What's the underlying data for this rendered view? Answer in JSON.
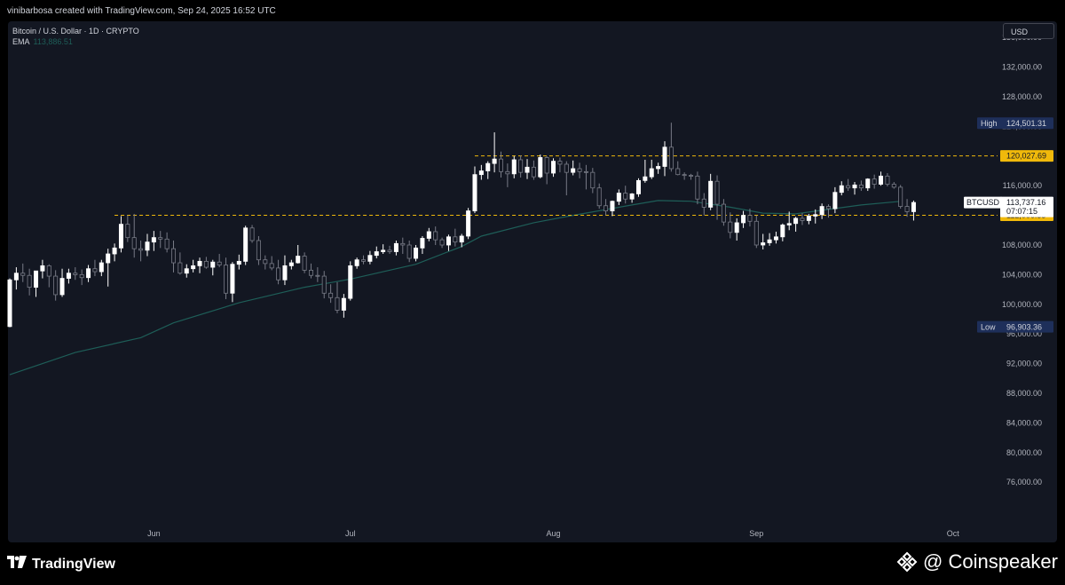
{
  "header": {
    "attribution": "vinibarbosa created with TradingView.com, Sep 24, 2025 16:52 UTC"
  },
  "legend": {
    "symbol_line": "Bitcoin / U.S. Dollar · 1D · CRYPTO",
    "ema_label": "EMA",
    "ema_value": "113,886.51"
  },
  "toolbar": {
    "currency": "USD"
  },
  "footer": {
    "brand": "TradingView",
    "watermark": "@ Coinspeaker"
  },
  "colors": {
    "background": "#131722",
    "up": "#ffffff",
    "down": "#787b86",
    "ema": "#1e5e58",
    "level": "#f0b90b",
    "axis_text": "#b2b5be"
  },
  "chart_data": {
    "type": "candlestick",
    "symbol": "BTCUSD",
    "ylim": [
      72000,
      140000
    ],
    "y_ticks": [
      "76,000.00",
      "80,000.00",
      "84,000.00",
      "88,000.00",
      "92,000.00",
      "96,000.00",
      "100,000.00",
      "104,000.00",
      "108,000.00",
      "112,000.00",
      "116,000.00",
      "120,000.00",
      "124,000.00",
      "128,000.00",
      "132,000.00",
      "136,000.00"
    ],
    "x_ticks": [
      "Jun",
      "Jul",
      "Aug",
      "Sep",
      "Oct"
    ],
    "x_tick_days": [
      22,
      52,
      83,
      114,
      144
    ],
    "last_day_index": 136,
    "high": {
      "label": "High",
      "value": 124501.31,
      "text": "124,501.31"
    },
    "low": {
      "label": "Low",
      "value": 96903.36,
      "text": "96,903.36"
    },
    "price": {
      "label": "BTCUSD",
      "value": 113737.16,
      "text": "113,737.16",
      "countdown": "07:07:15"
    },
    "levels": [
      {
        "value": 120027.69,
        "text": "120,027.69"
      },
      {
        "value": 112006.33,
        "text": "112,006.33"
      }
    ],
    "candles": [
      [
        97000,
        103500,
        96903.36,
        103300
      ],
      [
        103300,
        105000,
        102000,
        104200
      ],
      [
        104200,
        105500,
        103000,
        103900
      ],
      [
        103900,
        104800,
        101200,
        102300
      ],
      [
        102300,
        104200,
        101000,
        104500
      ],
      [
        104500,
        106000,
        103500,
        105200
      ],
      [
        105200,
        105400,
        102300,
        103800
      ],
      [
        103800,
        104600,
        100500,
        101300
      ],
      [
        101300,
        104800,
        101000,
        103500
      ],
      [
        103500,
        104800,
        102800,
        104200
      ],
      [
        104200,
        105000,
        103300,
        104000
      ],
      [
        104000,
        104700,
        102600,
        103600
      ],
      [
        103600,
        105300,
        103000,
        104800
      ],
      [
        104800,
        106000,
        103800,
        104400
      ],
      [
        104400,
        106000,
        103800,
        105600
      ],
      [
        105600,
        107500,
        102400,
        106800
      ],
      [
        106800,
        108200,
        105800,
        107600
      ],
      [
        107600,
        111900,
        107000,
        110800
      ],
      [
        110800,
        112000,
        108400,
        109000
      ],
      [
        109000,
        112200,
        106300,
        107500
      ],
      [
        107500,
        108600,
        105800,
        107300
      ],
      [
        107300,
        109500,
        106500,
        108400
      ],
      [
        108400,
        109900,
        107200,
        109000
      ],
      [
        109000,
        109900,
        107600,
        108800
      ],
      [
        108800,
        109700,
        107000,
        107500
      ],
      [
        107500,
        108600,
        104300,
        105600
      ],
      [
        105600,
        107000,
        104000,
        104200
      ],
      [
        104200,
        105400,
        103600,
        104800
      ],
      [
        104800,
        106000,
        104300,
        105200
      ],
      [
        105200,
        106300,
        104200,
        105800
      ],
      [
        105800,
        106400,
        104800,
        105000
      ],
      [
        105000,
        106000,
        103900,
        105700
      ],
      [
        105700,
        106800,
        105000,
        105300
      ],
      [
        105300,
        106300,
        100700,
        101500
      ],
      [
        101500,
        105700,
        100300,
        105400
      ],
      [
        105400,
        106700,
        104700,
        105800
      ],
      [
        105800,
        110600,
        105300,
        110300
      ],
      [
        110300,
        110700,
        108300,
        108600
      ],
      [
        108600,
        109200,
        105300,
        106000
      ],
      [
        106000,
        106600,
        104700,
        105500
      ],
      [
        105500,
        106500,
        104600,
        104900
      ],
      [
        104900,
        106000,
        102700,
        103300
      ],
      [
        103300,
        106600,
        102600,
        105200
      ],
      [
        105200,
        106000,
        104700,
        105600
      ],
      [
        105600,
        108000,
        105500,
        106500
      ],
      [
        106500,
        107000,
        104200,
        104600
      ],
      [
        104600,
        105500,
        103500,
        103900
      ],
      [
        103900,
        105000,
        103000,
        103800
      ],
      [
        103800,
        104500,
        100800,
        101500
      ],
      [
        101500,
        102700,
        100200,
        100900
      ],
      [
        100900,
        103000,
        98800,
        99200
      ],
      [
        99200,
        101400,
        98200,
        100800
      ],
      [
        100800,
        105800,
        100500,
        105200
      ],
      [
        105200,
        106300,
        104800,
        106000
      ],
      [
        106000,
        106600,
        105400,
        105800
      ],
      [
        105800,
        107200,
        105400,
        106600
      ],
      [
        106600,
        107800,
        106200,
        107100
      ],
      [
        107100,
        108100,
        106800,
        107300
      ],
      [
        107300,
        107900,
        106800,
        107100
      ],
      [
        107100,
        108600,
        106600,
        108200
      ],
      [
        108200,
        109000,
        106800,
        108000
      ],
      [
        108000,
        108600,
        105700,
        106200
      ],
      [
        106200,
        108000,
        105800,
        107600
      ],
      [
        107600,
        109200,
        106800,
        108900
      ],
      [
        108900,
        110300,
        108500,
        109800
      ],
      [
        109800,
        110500,
        108000,
        108700
      ],
      [
        108700,
        109000,
        107600,
        108000
      ],
      [
        108000,
        109400,
        107200,
        109100
      ],
      [
        109100,
        110200,
        107800,
        108400
      ],
      [
        108400,
        109500,
        107700,
        109200
      ],
      [
        109200,
        113000,
        108800,
        112600
      ],
      [
        112600,
        118600,
        112300,
        117500
      ],
      [
        117500,
        118800,
        116800,
        118000
      ],
      [
        118000,
        119300,
        116900,
        119000
      ],
      [
        119000,
        123200,
        117800,
        119600
      ],
      [
        119600,
        120600,
        117100,
        117900
      ],
      [
        117900,
        119000,
        115800,
        117600
      ],
      [
        117600,
        120000,
        117000,
        119500
      ],
      [
        119500,
        120100,
        117100,
        117800
      ],
      [
        117800,
        119600,
        116900,
        118500
      ],
      [
        118500,
        119400,
        116800,
        117200
      ],
      [
        117200,
        120200,
        117000,
        119800
      ],
      [
        119800,
        120000,
        116200,
        117700
      ],
      [
        117700,
        119700,
        117200,
        119300
      ],
      [
        119300,
        119800,
        117800,
        118900
      ],
      [
        118900,
        119300,
        114700,
        117800
      ],
      [
        117800,
        119400,
        117400,
        118300
      ],
      [
        118300,
        119100,
        117000,
        117900
      ],
      [
        117900,
        118800,
        115500,
        117800
      ],
      [
        117800,
        118400,
        115000,
        115700
      ],
      [
        115700,
        116300,
        112900,
        113300
      ],
      [
        113300,
        114200,
        112000,
        112600
      ],
      [
        112600,
        114000,
        111900,
        113900
      ],
      [
        113900,
        115500,
        113400,
        115000
      ],
      [
        115000,
        116000,
        113600,
        114200
      ],
      [
        114200,
        115000,
        113700,
        114900
      ],
      [
        114900,
        117000,
        114500,
        116700
      ],
      [
        116700,
        119500,
        116400,
        117200
      ],
      [
        117200,
        119500,
        116900,
        118300
      ],
      [
        118300,
        119100,
        117600,
        118600
      ],
      [
        118600,
        122000,
        117300,
        121200
      ],
      [
        121200,
        124501.31,
        117900,
        118300
      ],
      [
        118300,
        119300,
        117400,
        117500
      ],
      [
        117500,
        117800,
        116800,
        117400
      ],
      [
        117400,
        117600,
        116800,
        117300
      ],
      [
        117300,
        117900,
        113500,
        114200
      ],
      [
        114200,
        115000,
        112000,
        113100
      ],
      [
        113100,
        117600,
        112700,
        116600
      ],
      [
        116600,
        117400,
        111400,
        113500
      ],
      [
        113500,
        114200,
        110600,
        111100
      ],
      [
        111100,
        112400,
        108900,
        109700
      ],
      [
        109700,
        111600,
        108600,
        111000
      ],
      [
        111000,
        112600,
        110300,
        112000
      ],
      [
        112000,
        112900,
        110500,
        111200
      ],
      [
        111200,
        112000,
        107600,
        108000
      ],
      [
        108000,
        109500,
        107400,
        108300
      ],
      [
        108300,
        109600,
        107900,
        108700
      ],
      [
        108700,
        109800,
        108200,
        109100
      ],
      [
        109100,
        110900,
        108500,
        110700
      ],
      [
        110700,
        112500,
        110000,
        110900
      ],
      [
        110900,
        111800,
        109800,
        111600
      ],
      [
        111600,
        112300,
        110700,
        111300
      ],
      [
        111300,
        112200,
        110800,
        111900
      ],
      [
        111900,
        112800,
        110900,
        112100
      ],
      [
        112100,
        113600,
        111500,
        113200
      ],
      [
        113200,
        113500,
        111700,
        112900
      ],
      [
        112900,
        115800,
        112300,
        115100
      ],
      [
        115100,
        116600,
        114700,
        116000
      ],
      [
        116000,
        116900,
        115300,
        115700
      ],
      [
        115700,
        116500,
        114800,
        116100
      ],
      [
        116100,
        116700,
        115300,
        115700
      ],
      [
        115700,
        117000,
        115300,
        116900
      ],
      [
        116900,
        117500,
        115600,
        116200
      ],
      [
        116200,
        117900,
        116000,
        117300
      ],
      [
        117300,
        117700,
        115900,
        116200
      ],
      [
        116200,
        116500,
        115600,
        115800
      ],
      [
        115800,
        116100,
        112900,
        113200
      ],
      [
        113200,
        114200,
        111800,
        112500
      ],
      [
        112500,
        114000,
        111300,
        113737.16
      ]
    ],
    "ema_series": [
      [
        0,
        90500
      ],
      [
        10,
        93500
      ],
      [
        20,
        95500
      ],
      [
        25,
        97500
      ],
      [
        35,
        100200
      ],
      [
        45,
        102300
      ],
      [
        52,
        103400
      ],
      [
        62,
        105400
      ],
      [
        69,
        107800
      ],
      [
        72,
        109200
      ],
      [
        80,
        111000
      ],
      [
        86,
        112000
      ],
      [
        95,
        113400
      ],
      [
        99,
        114000
      ],
      [
        104,
        113900
      ],
      [
        110,
        113100
      ],
      [
        115,
        112300
      ],
      [
        120,
        112200
      ],
      [
        125,
        112800
      ],
      [
        130,
        113400
      ],
      [
        136,
        113886.51
      ]
    ]
  }
}
